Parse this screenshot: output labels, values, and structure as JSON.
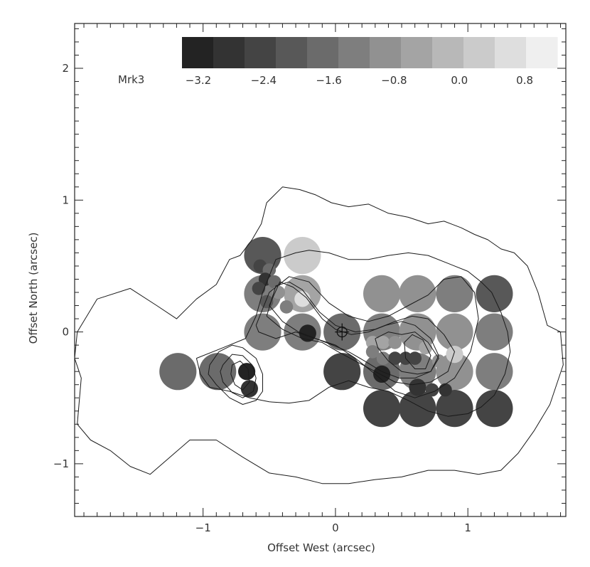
{
  "chart_data": {
    "type": "scatter",
    "title": "",
    "label": "Mrk3",
    "xlabel": "Offset West (arcsec)",
    "ylabel": "Offset North (arcsec)",
    "xlim": [
      -1.97,
      1.74
    ],
    "ylim": [
      -1.4,
      2.34
    ],
    "x_ticks": [
      -1,
      0,
      1
    ],
    "y_ticks": [
      -1,
      0,
      1,
      2
    ],
    "x_minor_step": 0.1,
    "y_minor_step": 0.1,
    "colorbar": {
      "range": [
        -3.4,
        1.2
      ],
      "labels": [
        "−3.2",
        "−2.4",
        "−1.6",
        "−0.8",
        "0.0",
        "0.8"
      ],
      "label_values": [
        -3.2,
        -2.4,
        -1.6,
        -0.8,
        0.0,
        0.8
      ],
      "levels": [
        -3.22,
        -2.81,
        -2.4,
        -1.99,
        -1.58,
        -1.17,
        -0.76,
        -0.35,
        0.06,
        0.47,
        0.88,
        1.29
      ],
      "colors": [
        "#232323",
        "#333333",
        "#444444",
        "#585858",
        "#6b6b6b",
        "#7e7e7e",
        "#919191",
        "#a4a4a4",
        "#b8b8b8",
        "#cbcbcb",
        "#dedede",
        "#efefef"
      ]
    },
    "points": [
      {
        "x": -0.55,
        "y": 0.58,
        "size": 0.14,
        "value": -1.9
      },
      {
        "x": -0.25,
        "y": 0.58,
        "size": 0.14,
        "value": 0.6
      },
      {
        "x": -0.55,
        "y": 0.29,
        "size": 0.14,
        "value": -1.3
      },
      {
        "x": -0.25,
        "y": 0.29,
        "size": 0.14,
        "value": -0.5
      },
      {
        "x": -0.55,
        "y": 0.0,
        "size": 0.14,
        "value": -1.0
      },
      {
        "x": -0.25,
        "y": 0.0,
        "size": 0.14,
        "value": -1.2
      },
      {
        "x": 0.05,
        "y": 0.0,
        "size": 0.14,
        "value": -1.4
      },
      {
        "x": 0.35,
        "y": 0.29,
        "size": 0.14,
        "value": -0.6
      },
      {
        "x": 0.62,
        "y": 0.29,
        "size": 0.14,
        "value": -0.8
      },
      {
        "x": 0.9,
        "y": 0.29,
        "size": 0.14,
        "value": -1.0
      },
      {
        "x": 1.2,
        "y": 0.29,
        "size": 0.14,
        "value": -2.0
      },
      {
        "x": 1.2,
        "y": 0.0,
        "size": 0.14,
        "value": -1.3
      },
      {
        "x": 0.35,
        "y": 0.0,
        "size": 0.14,
        "value": -1.0
      },
      {
        "x": 0.62,
        "y": 0.0,
        "size": 0.14,
        "value": -0.7
      },
      {
        "x": 0.9,
        "y": 0.0,
        "size": 0.14,
        "value": -0.9
      },
      {
        "x": -1.19,
        "y": -0.3,
        "size": 0.14,
        "value": -1.5
      },
      {
        "x": -0.89,
        "y": -0.3,
        "size": 0.14,
        "value": -1.6
      },
      {
        "x": 0.05,
        "y": -0.3,
        "size": 0.14,
        "value": -2.4
      },
      {
        "x": 0.35,
        "y": -0.3,
        "size": 0.14,
        "value": -1.6
      },
      {
        "x": 0.62,
        "y": -0.3,
        "size": 0.14,
        "value": -1.2
      },
      {
        "x": 0.9,
        "y": -0.3,
        "size": 0.14,
        "value": -0.9
      },
      {
        "x": 1.2,
        "y": -0.3,
        "size": 0.14,
        "value": -1.1
      },
      {
        "x": 0.35,
        "y": -0.58,
        "size": 0.14,
        "value": -2.3
      },
      {
        "x": 0.62,
        "y": -0.58,
        "size": 0.14,
        "value": -2.3
      },
      {
        "x": 0.9,
        "y": -0.58,
        "size": 0.14,
        "value": -2.2
      },
      {
        "x": 1.2,
        "y": -0.58,
        "size": 0.14,
        "value": -2.3
      },
      {
        "x": -0.57,
        "y": 0.5,
        "size": 0.05,
        "value": -2.6
      },
      {
        "x": -0.5,
        "y": 0.47,
        "size": 0.05,
        "value": -1.6
      },
      {
        "x": -0.53,
        "y": 0.4,
        "size": 0.05,
        "value": -2.8
      },
      {
        "x": -0.58,
        "y": 0.33,
        "size": 0.05,
        "value": -2.5
      },
      {
        "x": -0.46,
        "y": 0.38,
        "size": 0.05,
        "value": -1.4
      },
      {
        "x": -0.43,
        "y": 0.3,
        "size": 0.05,
        "value": -0.8
      },
      {
        "x": -0.52,
        "y": 0.23,
        "size": 0.05,
        "value": -1.9
      },
      {
        "x": -0.25,
        "y": 0.25,
        "size": 0.06,
        "value": 0.9
      },
      {
        "x": -0.37,
        "y": 0.19,
        "size": 0.05,
        "value": -1.3
      },
      {
        "x": -0.21,
        "y": -0.01,
        "size": 0.065,
        "value": -3.2
      },
      {
        "x": 0.28,
        "y": -0.08,
        "size": 0.05,
        "value": -0.4
      },
      {
        "x": 0.36,
        "y": -0.08,
        "size": 0.05,
        "value": -0.5
      },
      {
        "x": 0.45,
        "y": -0.08,
        "size": 0.05,
        "value": -0.6
      },
      {
        "x": 0.28,
        "y": -0.15,
        "size": 0.05,
        "value": -1.0
      },
      {
        "x": 0.36,
        "y": -0.2,
        "size": 0.05,
        "value": -1.3
      },
      {
        "x": 0.45,
        "y": -0.2,
        "size": 0.05,
        "value": -2.4
      },
      {
        "x": 0.53,
        "y": -0.2,
        "size": 0.05,
        "value": -2.6
      },
      {
        "x": 0.6,
        "y": -0.2,
        "size": 0.05,
        "value": -2.5
      },
      {
        "x": 0.68,
        "y": -0.12,
        "size": 0.05,
        "value": -0.3
      },
      {
        "x": 0.78,
        "y": -0.22,
        "size": 0.05,
        "value": -0.7
      },
      {
        "x": 0.9,
        "y": -0.17,
        "size": 0.065,
        "value": 0.5
      },
      {
        "x": 0.35,
        "y": -0.32,
        "size": 0.065,
        "value": -3.1
      },
      {
        "x": 0.62,
        "y": -0.42,
        "size": 0.065,
        "value": -2.7
      },
      {
        "x": 0.73,
        "y": -0.44,
        "size": 0.05,
        "value": -2.6
      },
      {
        "x": 0.83,
        "y": -0.44,
        "size": 0.05,
        "value": -2.8
      },
      {
        "x": -0.67,
        "y": -0.3,
        "size": 0.065,
        "value": -3.3
      },
      {
        "x": -0.65,
        "y": -0.43,
        "size": 0.065,
        "value": -3.0
      }
    ],
    "center_marker": {
      "x": 0.05,
      "y": 0.0
    },
    "contours": [
      {
        "level": 1,
        "x": [
          -1.95,
          -1.8,
          -1.55,
          -1.35,
          -1.2,
          -1.05,
          -0.9,
          -0.8,
          -0.72,
          -0.63,
          -0.56,
          -0.52,
          -0.4,
          -0.27,
          -0.15,
          -0.03,
          0.1,
          0.25,
          0.4,
          0.55,
          0.7,
          0.82,
          0.95,
          1.05,
          1.15,
          1.25,
          1.35,
          1.45,
          1.53,
          1.6,
          1.7,
          1.72,
          1.62,
          1.5,
          1.38,
          1.25,
          1.08,
          0.9,
          0.7,
          0.5,
          0.3,
          0.1,
          -0.1,
          -0.3,
          -0.5,
          -0.7,
          -0.9,
          -1.1,
          -1.25,
          -1.4,
          -1.55,
          -1.7,
          -1.85,
          -1.95,
          -1.92,
          -1.97,
          -1.95
        ],
        "y": [
          0.0,
          0.25,
          0.33,
          0.2,
          0.1,
          0.25,
          0.36,
          0.55,
          0.58,
          0.7,
          0.82,
          0.98,
          1.1,
          1.08,
          1.04,
          0.98,
          0.95,
          0.97,
          0.9,
          0.87,
          0.82,
          0.84,
          0.79,
          0.74,
          0.7,
          0.63,
          0.6,
          0.5,
          0.3,
          0.05,
          0.0,
          -0.25,
          -0.55,
          -0.75,
          -0.92,
          -1.05,
          -1.08,
          -1.05,
          -1.05,
          -1.1,
          -1.12,
          -1.15,
          -1.15,
          -1.1,
          -1.07,
          -0.95,
          -0.82,
          -0.82,
          -0.95,
          -1.08,
          -1.02,
          -0.9,
          -0.82,
          -0.7,
          -0.35,
          -0.2,
          0.0
        ]
      },
      {
        "level": 2,
        "x": [
          -1.05,
          -0.85,
          -0.68,
          -0.6,
          -0.55,
          -0.45,
          -0.3,
          -0.2,
          -0.05,
          0.1,
          0.25,
          0.4,
          0.55,
          0.7,
          0.85,
          1.0,
          1.1,
          1.18,
          1.25,
          1.3,
          1.32,
          1.28,
          1.2,
          1.1,
          1.0,
          0.85,
          0.7,
          0.55,
          0.4,
          0.25,
          0.1,
          -0.05,
          -0.2,
          -0.35,
          -0.5,
          -0.65,
          -0.8,
          -0.95,
          -1.02,
          -1.05
        ],
        "y": [
          -0.2,
          -0.12,
          -0.05,
          0.12,
          0.3,
          0.55,
          0.6,
          0.62,
          0.6,
          0.55,
          0.55,
          0.58,
          0.6,
          0.58,
          0.52,
          0.46,
          0.38,
          0.3,
          0.15,
          0.0,
          -0.15,
          -0.32,
          -0.48,
          -0.57,
          -0.62,
          -0.64,
          -0.6,
          -0.52,
          -0.45,
          -0.42,
          -0.37,
          -0.42,
          -0.52,
          -0.54,
          -0.53,
          -0.5,
          -0.45,
          -0.42,
          -0.32,
          -0.2
        ]
      },
      {
        "level": 3,
        "x": [
          -0.6,
          -0.5,
          -0.35,
          -0.2,
          -0.05,
          0.1,
          0.25,
          0.4,
          0.55,
          0.7,
          0.82,
          0.95,
          1.05,
          1.08,
          1.02,
          0.9,
          0.75,
          0.6,
          0.45,
          0.3,
          0.15,
          0.0,
          -0.15,
          -0.3,
          -0.45,
          -0.58,
          -0.6
        ],
        "y": [
          0.05,
          0.3,
          0.42,
          0.38,
          0.22,
          0.12,
          0.08,
          0.12,
          0.2,
          0.28,
          0.4,
          0.42,
          0.3,
          0.1,
          -0.15,
          -0.35,
          -0.45,
          -0.5,
          -0.45,
          -0.32,
          -0.2,
          -0.1,
          -0.05,
          0.0,
          -0.05,
          0.0,
          0.05
        ]
      },
      {
        "level": 4,
        "x": [
          -0.52,
          -0.45,
          -0.35,
          -0.25,
          -0.12,
          0.0,
          0.15,
          0.3,
          0.45,
          0.58,
          0.7,
          0.82,
          0.9,
          0.85,
          0.72,
          0.58,
          0.45,
          0.3,
          0.15,
          0.02,
          -0.1,
          -0.25,
          -0.4,
          -0.52
        ],
        "y": [
          0.12,
          0.35,
          0.38,
          0.32,
          0.15,
          0.05,
          0.0,
          0.02,
          0.08,
          0.12,
          0.1,
          -0.02,
          -0.15,
          -0.3,
          -0.38,
          -0.4,
          -0.38,
          -0.3,
          -0.22,
          -0.15,
          -0.08,
          -0.05,
          0.02,
          0.12
        ]
      },
      {
        "level": 5,
        "x": [
          -0.5,
          -0.42,
          -0.32,
          -0.22,
          -0.1,
          0.0,
          0.12,
          0.25,
          0.38,
          0.5,
          0.6,
          0.72,
          0.78,
          0.72,
          0.6,
          0.48,
          0.35,
          0.22,
          0.1,
          -0.02,
          -0.15,
          -0.28,
          -0.4,
          -0.5
        ],
        "y": [
          0.2,
          0.38,
          0.34,
          0.26,
          0.1,
          0.02,
          -0.02,
          0.0,
          0.05,
          0.08,
          0.05,
          -0.05,
          -0.18,
          -0.3,
          -0.35,
          -0.35,
          -0.3,
          -0.22,
          -0.15,
          -0.1,
          -0.05,
          0.0,
          0.08,
          0.2
        ]
      },
      {
        "level": 6,
        "x": [
          0.3,
          0.4,
          0.5,
          0.6,
          0.7,
          0.78,
          0.72,
          0.62,
          0.5,
          0.4,
          0.32,
          0.3
        ],
        "y": [
          -0.05,
          0.0,
          -0.02,
          0.0,
          -0.08,
          -0.2,
          -0.3,
          -0.32,
          -0.3,
          -0.22,
          -0.12,
          -0.05
        ]
      },
      {
        "level": 7,
        "x": [
          0.52,
          0.58,
          0.66,
          0.72,
          0.68,
          0.6,
          0.53,
          0.52
        ],
        "y": [
          -0.08,
          -0.02,
          -0.06,
          -0.18,
          -0.28,
          -0.28,
          -0.2,
          -0.08
        ]
      },
      {
        "level": 8,
        "x": [
          -0.95,
          -0.88,
          -0.78,
          -0.7,
          -0.6,
          -0.55,
          -0.55,
          -0.6,
          -0.7,
          -0.8,
          -0.9,
          -0.96,
          -0.95
        ],
        "y": [
          -0.25,
          -0.15,
          -0.1,
          -0.12,
          -0.2,
          -0.32,
          -0.45,
          -0.52,
          -0.55,
          -0.5,
          -0.4,
          -0.32,
          -0.25
        ]
      },
      {
        "level": 9,
        "x": [
          -0.85,
          -0.78,
          -0.7,
          -0.63,
          -0.6,
          -0.62,
          -0.7,
          -0.78,
          -0.85,
          -0.87,
          -0.85
        ],
        "y": [
          -0.25,
          -0.17,
          -0.18,
          -0.25,
          -0.35,
          -0.45,
          -0.5,
          -0.46,
          -0.38,
          -0.3,
          -0.25
        ]
      },
      {
        "level": 10,
        "x": [
          -0.78,
          -0.72,
          -0.66,
          -0.65,
          -0.7,
          -0.76,
          -0.79,
          -0.78
        ],
        "y": [
          -0.25,
          -0.22,
          -0.28,
          -0.38,
          -0.44,
          -0.4,
          -0.32,
          -0.25
        ]
      }
    ]
  }
}
